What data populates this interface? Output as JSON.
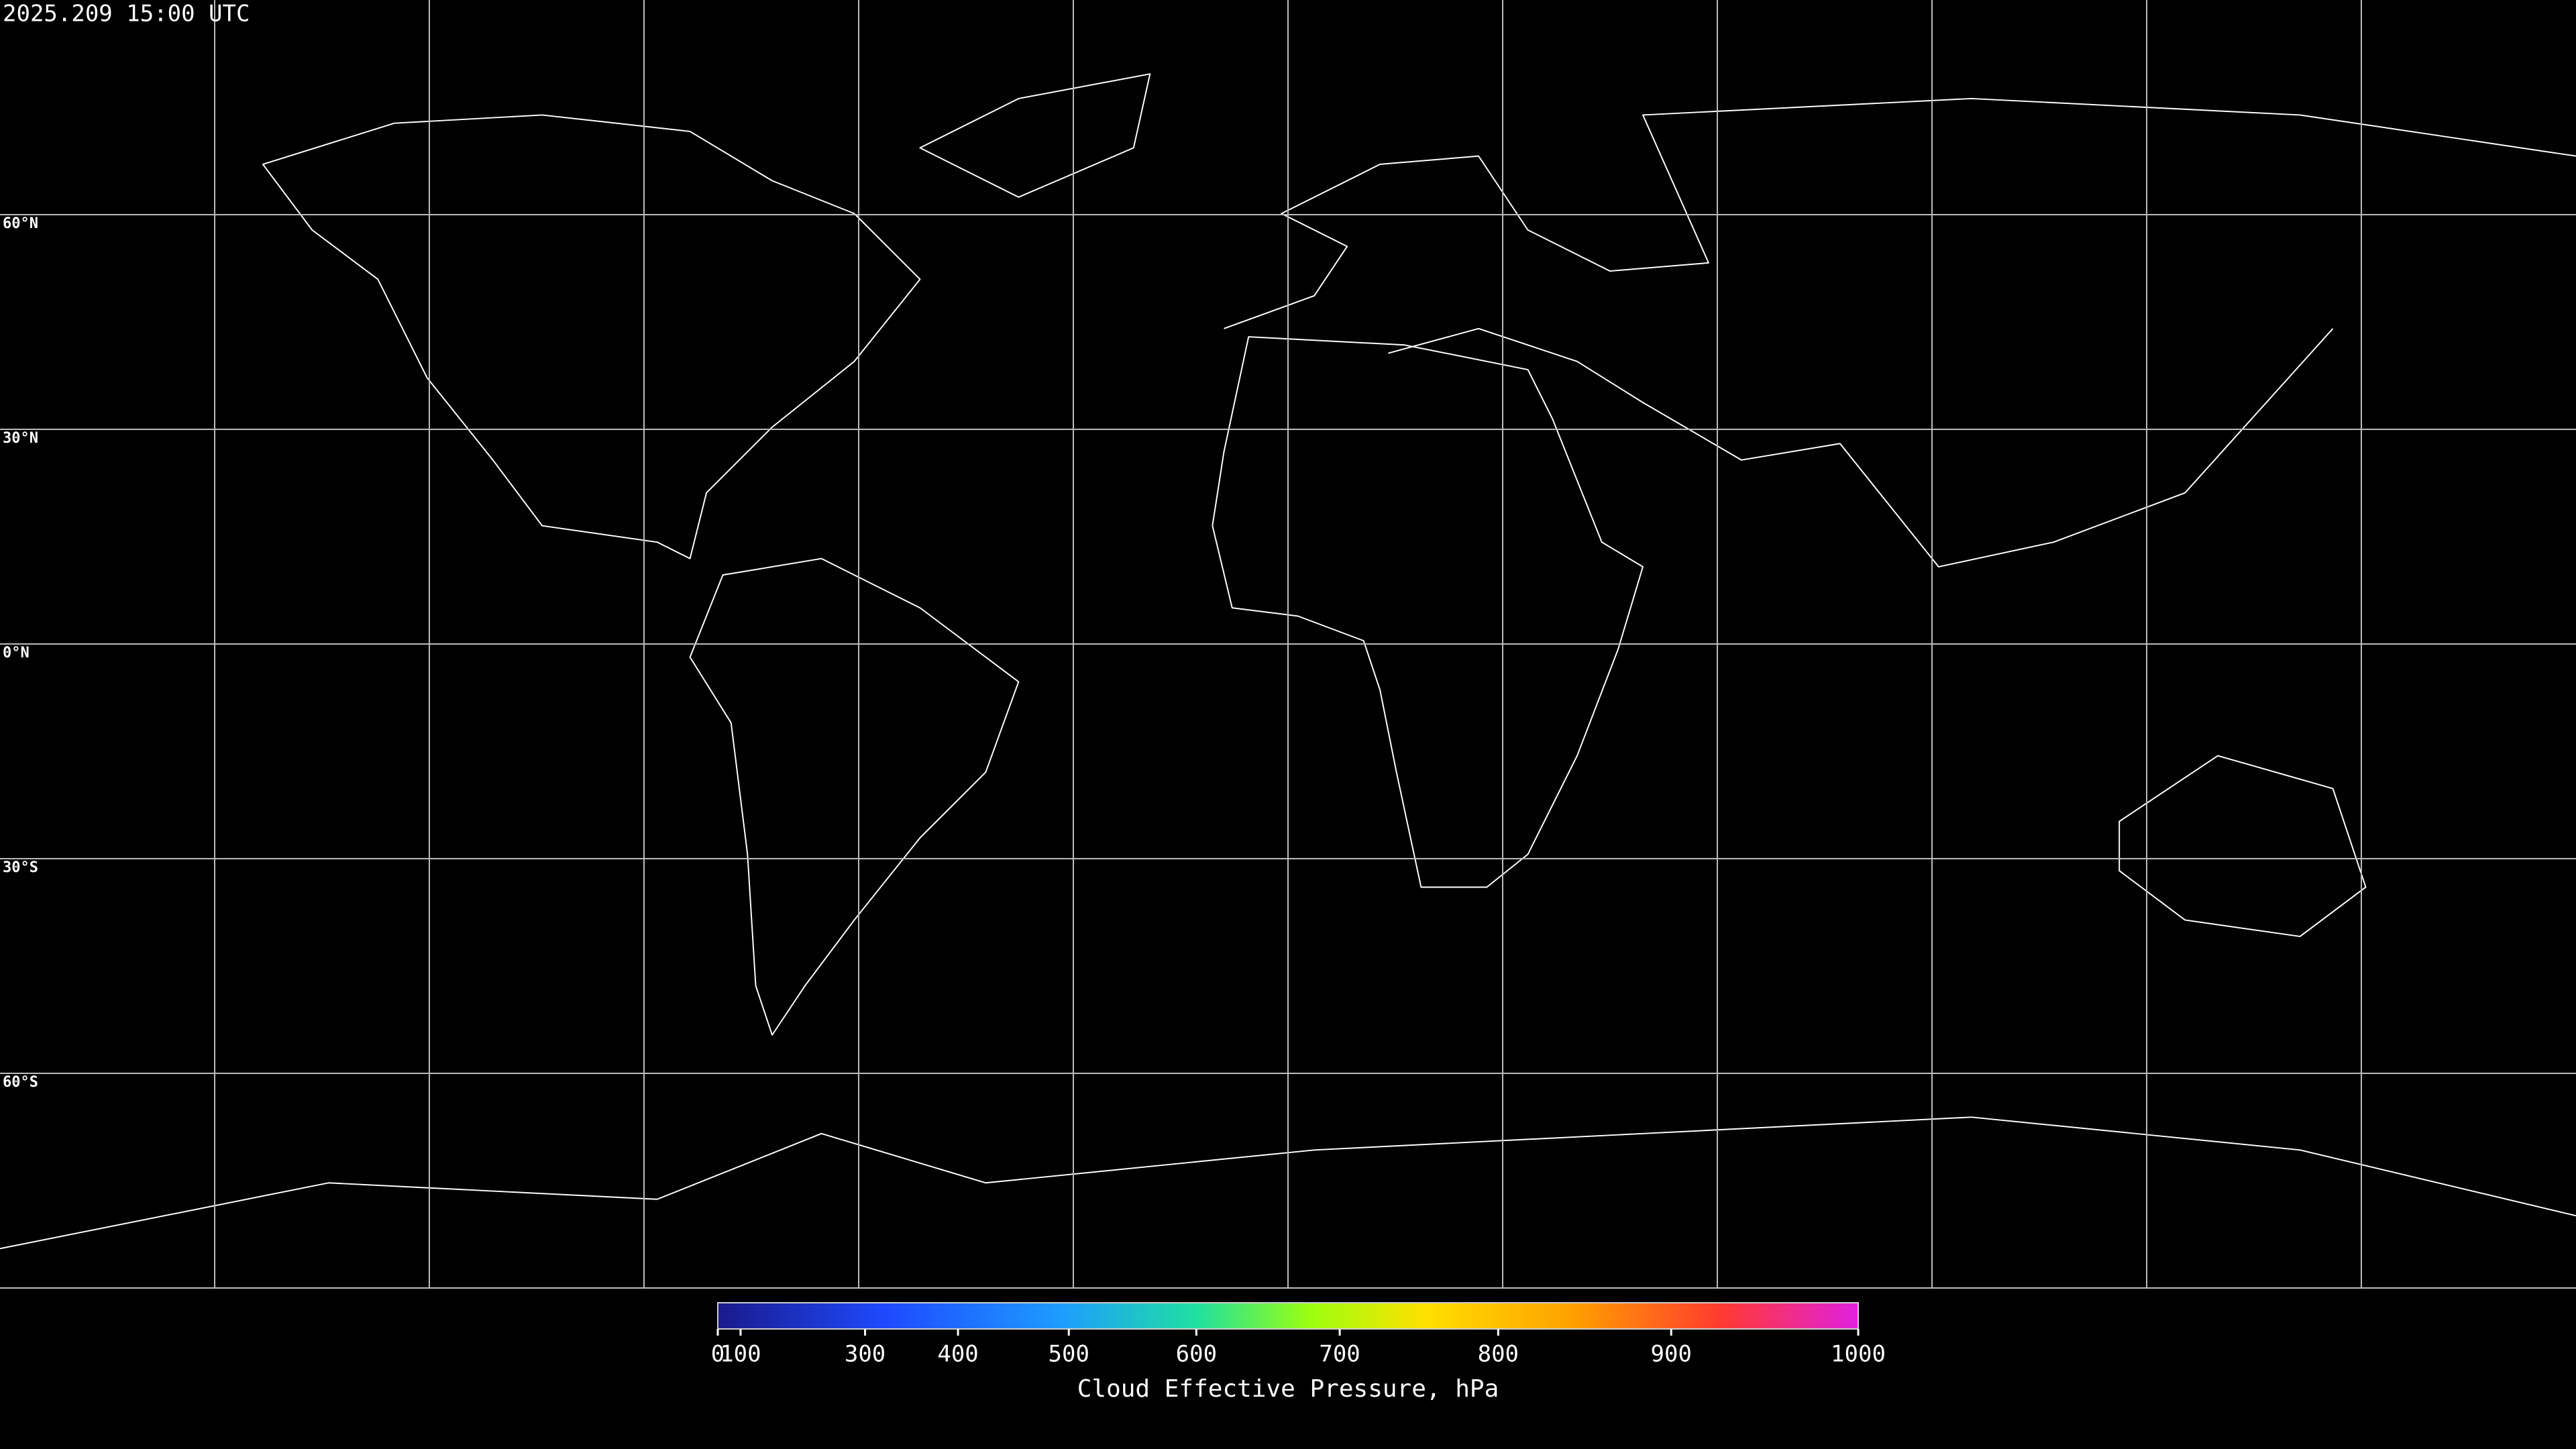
{
  "map": {
    "timestamp": "2025.209 15:00 UTC",
    "lat_ticks": [
      {
        "value": 60,
        "label": "60°N"
      },
      {
        "value": 30,
        "label": "30°N"
      },
      {
        "value": 0,
        "label": "0°N"
      },
      {
        "value": -30,
        "label": "30°S"
      },
      {
        "value": -60,
        "label": "60°S"
      }
    ]
  },
  "colorbar": {
    "label": "Cloud Effective Pressure, hPa",
    "range": [
      0,
      1000
    ],
    "ticks": [
      0,
      100,
      300,
      400,
      500,
      600,
      700,
      800,
      900,
      1000
    ]
  }
}
